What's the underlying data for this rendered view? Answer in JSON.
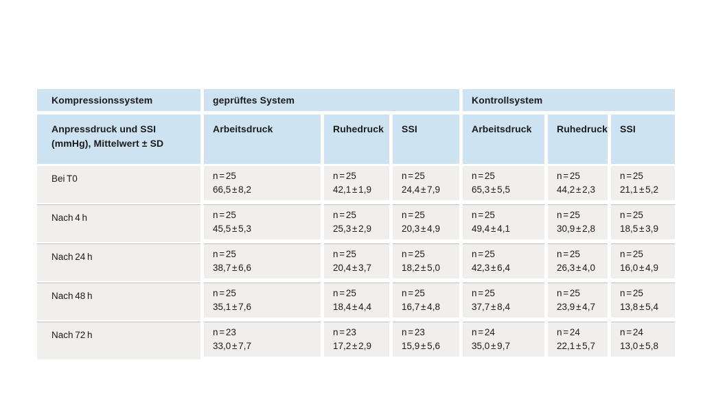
{
  "table": {
    "header_top": {
      "col1": "Kompressionssystem",
      "tested_system": "geprüftes System",
      "control_system": "Kontrollsystem"
    },
    "subheader": {
      "row_title_line1": "Anpressdruck und SSI",
      "row_title_line2": "(mmHg), Mittelwert ± SD",
      "cols": [
        "Arbeitsdruck",
        "Ruhedruck",
        "SSI",
        "Arbeitsdruck",
        "Ruhedruck",
        "SSI"
      ]
    },
    "rows": [
      {
        "label": "Bei T0",
        "cells": [
          {
            "n": "n = 25",
            "value": "66,5 ± 8,2"
          },
          {
            "n": "n = 25",
            "value": "42,1 ± 1,9"
          },
          {
            "n": "n = 25",
            "value": "24,4 ± 7,9"
          },
          {
            "n": "n = 25",
            "value": "65,3 ± 5,5"
          },
          {
            "n": "n = 25",
            "value": "44,2 ± 2,3"
          },
          {
            "n": "n = 25",
            "value": "21,1 ± 5,2"
          }
        ]
      },
      {
        "label": "Nach 4 h",
        "cells": [
          {
            "n": "n = 25",
            "value": "45,5 ± 5,3"
          },
          {
            "n": "n = 25",
            "value": "25,3 ± 2,9"
          },
          {
            "n": "n = 25",
            "value": "20,3 ± 4,9"
          },
          {
            "n": "n = 25",
            "value": "49,4 ± 4,1"
          },
          {
            "n": "n = 25",
            "value": "30,9 ± 2,8"
          },
          {
            "n": "n = 25",
            "value": "18,5 ± 3,9"
          }
        ]
      },
      {
        "label": "Nach 24 h",
        "cells": [
          {
            "n": "n = 25",
            "value": "38,7 ± 6,6"
          },
          {
            "n": "n = 25",
            "value": "20,4 ± 3,7"
          },
          {
            "n": "n = 25",
            "value": "18,2 ± 5,0"
          },
          {
            "n": "n = 25",
            "value": "42,3 ± 6,4"
          },
          {
            "n": "n = 25",
            "value": "26,3 ± 4,0"
          },
          {
            "n": "n = 25",
            "value": "16,0 ± 4,9"
          }
        ]
      },
      {
        "label": "Nach 48 h",
        "cells": [
          {
            "n": "n = 25",
            "value": "35,1 ± 7,6"
          },
          {
            "n": "n = 25",
            "value": "18,4 ± 4,4"
          },
          {
            "n": "n = 25",
            "value": "16,7 ± 4,8"
          },
          {
            "n": "n = 25",
            "value": "37,7 ± 8,4"
          },
          {
            "n": "n = 25",
            "value": "23,9 ± 4,7"
          },
          {
            "n": "n = 25",
            "value": "13,8 ± 5,4"
          }
        ]
      },
      {
        "label": "Nach 72 h",
        "cells": [
          {
            "n": "n = 23",
            "value": "33,0 ± 7,7"
          },
          {
            "n": "n = 23",
            "value": "17,2 ± 2,9"
          },
          {
            "n": "n = 23",
            "value": "15,9 ± 5,6"
          },
          {
            "n": "n = 24",
            "value": "35,0 ± 9,7"
          },
          {
            "n": "n = 24",
            "value": "22,1 ± 5,7"
          },
          {
            "n": "n = 24",
            "value": "13,0 ± 5,8"
          }
        ]
      }
    ]
  },
  "colors": {
    "header_bg": "#cee3f1",
    "row_bg": "#f0efed",
    "separator": "#c2c1bf",
    "text": "#1a1a1a",
    "page_bg": "#ffffff"
  }
}
